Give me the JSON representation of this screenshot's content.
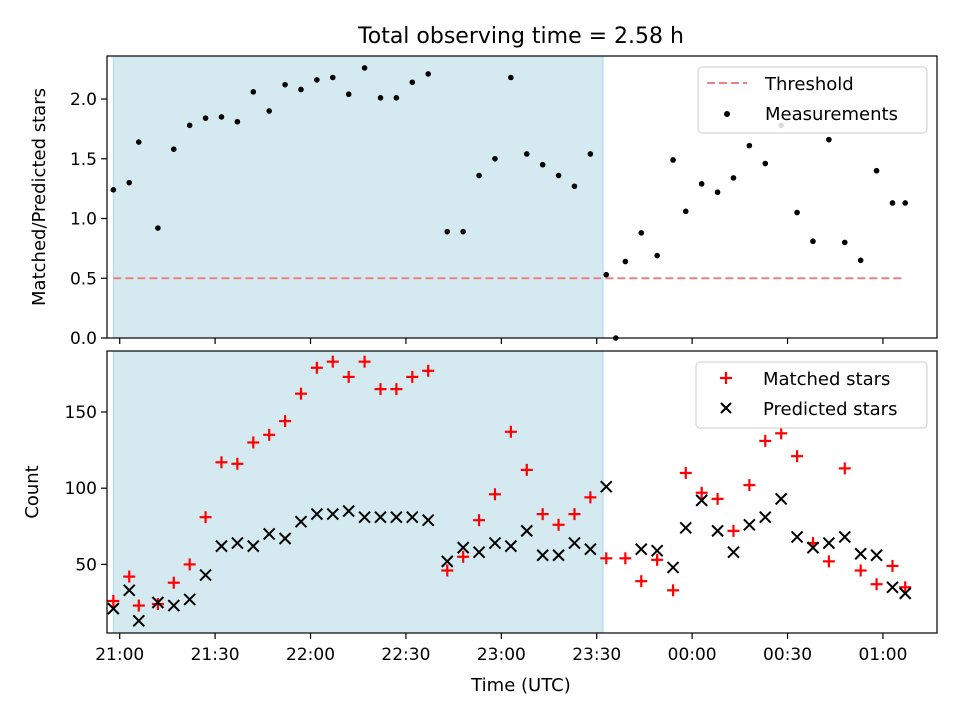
{
  "title": "Total observing time = 2.58 h",
  "chart_data": [
    {
      "type": "scatter",
      "ylabel": "Matched/Predicted stars",
      "xlabel": "",
      "x_unit": "time (UTC)",
      "xlim": [
        "20:56",
        "01:17"
      ],
      "ylim": [
        0,
        2.36
      ],
      "yticks": [
        0.0,
        0.5,
        1.0,
        1.5,
        2.0
      ],
      "ytick_labels": [
        "0.0",
        "0.5",
        "1.0",
        "1.5",
        "2.0"
      ],
      "shaded_region": {
        "start": "20:58",
        "end": "23:32",
        "color": "#d4eaf0"
      },
      "legend": {
        "position": "upper right",
        "entries": [
          "Threshold",
          "Measurements"
        ]
      },
      "series": [
        {
          "name": "Threshold",
          "kind": "line",
          "style": "dashed",
          "color": "#f08080",
          "x": [
            "20:58",
            "01:07"
          ],
          "y": [
            0.5,
            0.5
          ]
        },
        {
          "name": "Measurements",
          "kind": "scatter",
          "marker": "dot",
          "color": "#000000",
          "x": [
            "20:58",
            "21:03",
            "21:06",
            "21:12",
            "21:17",
            "21:22",
            "21:27",
            "21:32",
            "21:37",
            "21:42",
            "21:47",
            "21:52",
            "21:57",
            "22:02",
            "22:07",
            "22:12",
            "22:17",
            "22:22",
            "22:27",
            "22:32",
            "22:37",
            "22:43",
            "22:48",
            "22:53",
            "22:58",
            "23:03",
            "23:08",
            "23:13",
            "23:18",
            "23:23",
            "23:28",
            "23:33",
            "23:36",
            "23:39",
            "23:44",
            "23:49",
            "23:54",
            "23:58",
            "00:03",
            "00:08",
            "00:13",
            "00:18",
            "00:23",
            "00:28",
            "00:33",
            "00:38",
            "00:43",
            "00:48",
            "00:53",
            "00:58",
            "01:03",
            "01:07"
          ],
          "y": [
            1.24,
            1.3,
            1.64,
            0.92,
            1.58,
            1.78,
            1.84,
            1.85,
            1.81,
            2.06,
            1.9,
            2.12,
            2.08,
            2.16,
            2.18,
            2.04,
            2.26,
            2.01,
            2.01,
            2.14,
            2.21,
            0.89,
            0.89,
            1.36,
            1.5,
            2.18,
            1.54,
            1.45,
            1.36,
            1.27,
            1.54,
            0.53,
            0.0,
            0.64,
            0.88,
            0.69,
            1.49,
            1.06,
            1.29,
            1.22,
            1.34,
            1.61,
            1.46,
            1.78,
            1.05,
            0.81,
            1.66,
            0.8,
            0.65,
            1.4,
            1.13,
            1.13
          ]
        }
      ]
    },
    {
      "type": "scatter",
      "xlabel": "Time (UTC)",
      "ylabel": "Count",
      "xlim": [
        "20:56",
        "01:17"
      ],
      "ylim": [
        5,
        190
      ],
      "xticks": [
        "21:00",
        "21:30",
        "22:00",
        "22:30",
        "23:00",
        "23:30",
        "00:00",
        "00:30",
        "01:00"
      ],
      "yticks": [
        50,
        100,
        150
      ],
      "ytick_labels": [
        "50",
        "100",
        "150"
      ],
      "shaded_region": {
        "start": "20:58",
        "end": "23:32",
        "color": "#d4eaf0"
      },
      "legend": {
        "position": "upper right",
        "entries": [
          "Matched stars",
          "Predicted stars"
        ]
      },
      "series": [
        {
          "name": "Matched stars",
          "marker": "plus",
          "color": "#ff0000",
          "x": [
            "20:58",
            "21:03",
            "21:06",
            "21:12",
            "21:17",
            "21:22",
            "21:27",
            "21:32",
            "21:37",
            "21:42",
            "21:47",
            "21:52",
            "21:57",
            "22:02",
            "22:07",
            "22:12",
            "22:17",
            "22:22",
            "22:27",
            "22:32",
            "22:37",
            "22:43",
            "22:48",
            "22:53",
            "22:58",
            "23:03",
            "23:08",
            "23:13",
            "23:18",
            "23:23",
            "23:28",
            "23:33",
            "23:39",
            "23:44",
            "23:49",
            "23:54",
            "23:58",
            "00:03",
            "00:08",
            "00:13",
            "00:18",
            "00:23",
            "00:28",
            "00:33",
            "00:38",
            "00:43",
            "00:48",
            "00:53",
            "00:58",
            "01:03",
            "01:07"
          ],
          "y": [
            26,
            42,
            23,
            24,
            38,
            50,
            81,
            117,
            116,
            130,
            135,
            144,
            162,
            179,
            183,
            173,
            183,
            165,
            165,
            173,
            177,
            46,
            55,
            79,
            96,
            137,
            112,
            83,
            76,
            83,
            94,
            54,
            54,
            39,
            53,
            33,
            110,
            97,
            93,
            72,
            102,
            131,
            136,
            121,
            64,
            52,
            113,
            46,
            37,
            49,
            35
          ]
        },
        {
          "name": "Predicted stars",
          "marker": "x",
          "color": "#000000",
          "x": [
            "20:58",
            "21:03",
            "21:06",
            "21:12",
            "21:17",
            "21:22",
            "21:27",
            "21:32",
            "21:37",
            "21:42",
            "21:47",
            "21:52",
            "21:57",
            "22:02",
            "22:07",
            "22:12",
            "22:17",
            "22:22",
            "22:27",
            "22:32",
            "22:37",
            "22:43",
            "22:48",
            "22:53",
            "22:58",
            "23:03",
            "23:08",
            "23:13",
            "23:18",
            "23:23",
            "23:28",
            "23:33",
            "23:44",
            "23:49",
            "23:54",
            "23:58",
            "00:03",
            "00:08",
            "00:13",
            "00:18",
            "00:23",
            "00:28",
            "00:33",
            "00:38",
            "00:43",
            "00:48",
            "00:53",
            "00:58",
            "01:03",
            "01:07"
          ],
          "y": [
            21,
            33,
            13,
            25,
            23,
            27,
            43,
            62,
            64,
            62,
            70,
            67,
            78,
            83,
            83,
            85,
            81,
            81,
            81,
            81,
            79,
            52,
            61,
            58,
            64,
            62,
            72,
            56,
            56,
            64,
            60,
            101,
            60,
            59,
            48,
            74,
            92,
            72,
            58,
            76,
            81,
            93,
            68,
            61,
            64,
            68,
            57,
            56,
            35,
            31
          ]
        }
      ]
    }
  ]
}
